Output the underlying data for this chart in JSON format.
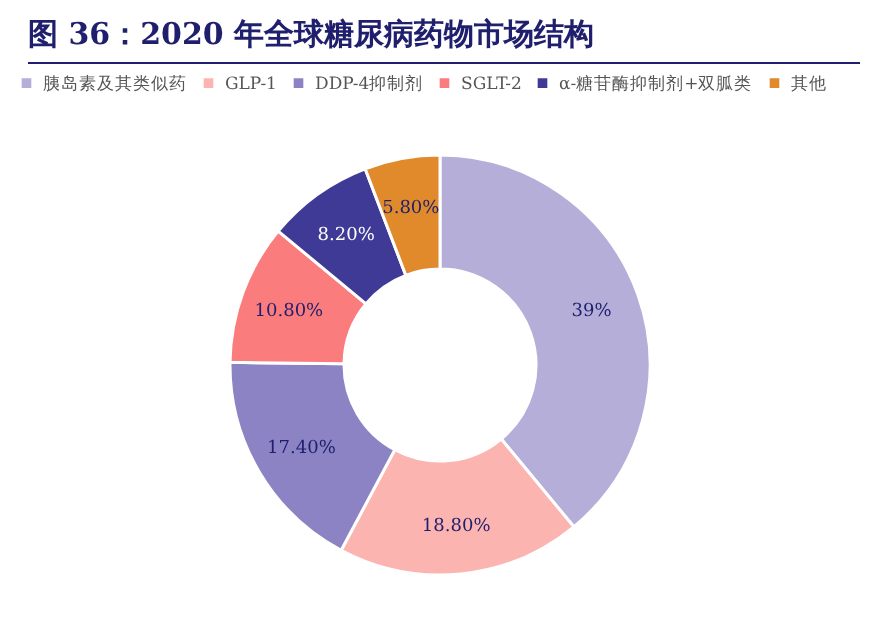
{
  "chart_data": {
    "type": "donut",
    "title": "图 36：2020 年全球糖尿病药物市场结构",
    "categories": [
      "胰岛素及其类似药",
      "GLP-1",
      "DDP-4抑制剂",
      "SGLT-2",
      "α-糖苷酶抑制剂+双胍类",
      "其他"
    ],
    "values": [
      39,
      18.8,
      17.4,
      10.8,
      8.2,
      5.8
    ],
    "colors": [
      "#b4aed8",
      "#fcb4b0",
      "#8b83c3",
      "#fb7c7c",
      "#3f3a96",
      "#e08a2c"
    ],
    "value_labels": [
      "39%",
      "18.80%",
      "17.40%",
      "10.80%",
      "8.20%",
      "5.80%"
    ],
    "legend": "top"
  }
}
